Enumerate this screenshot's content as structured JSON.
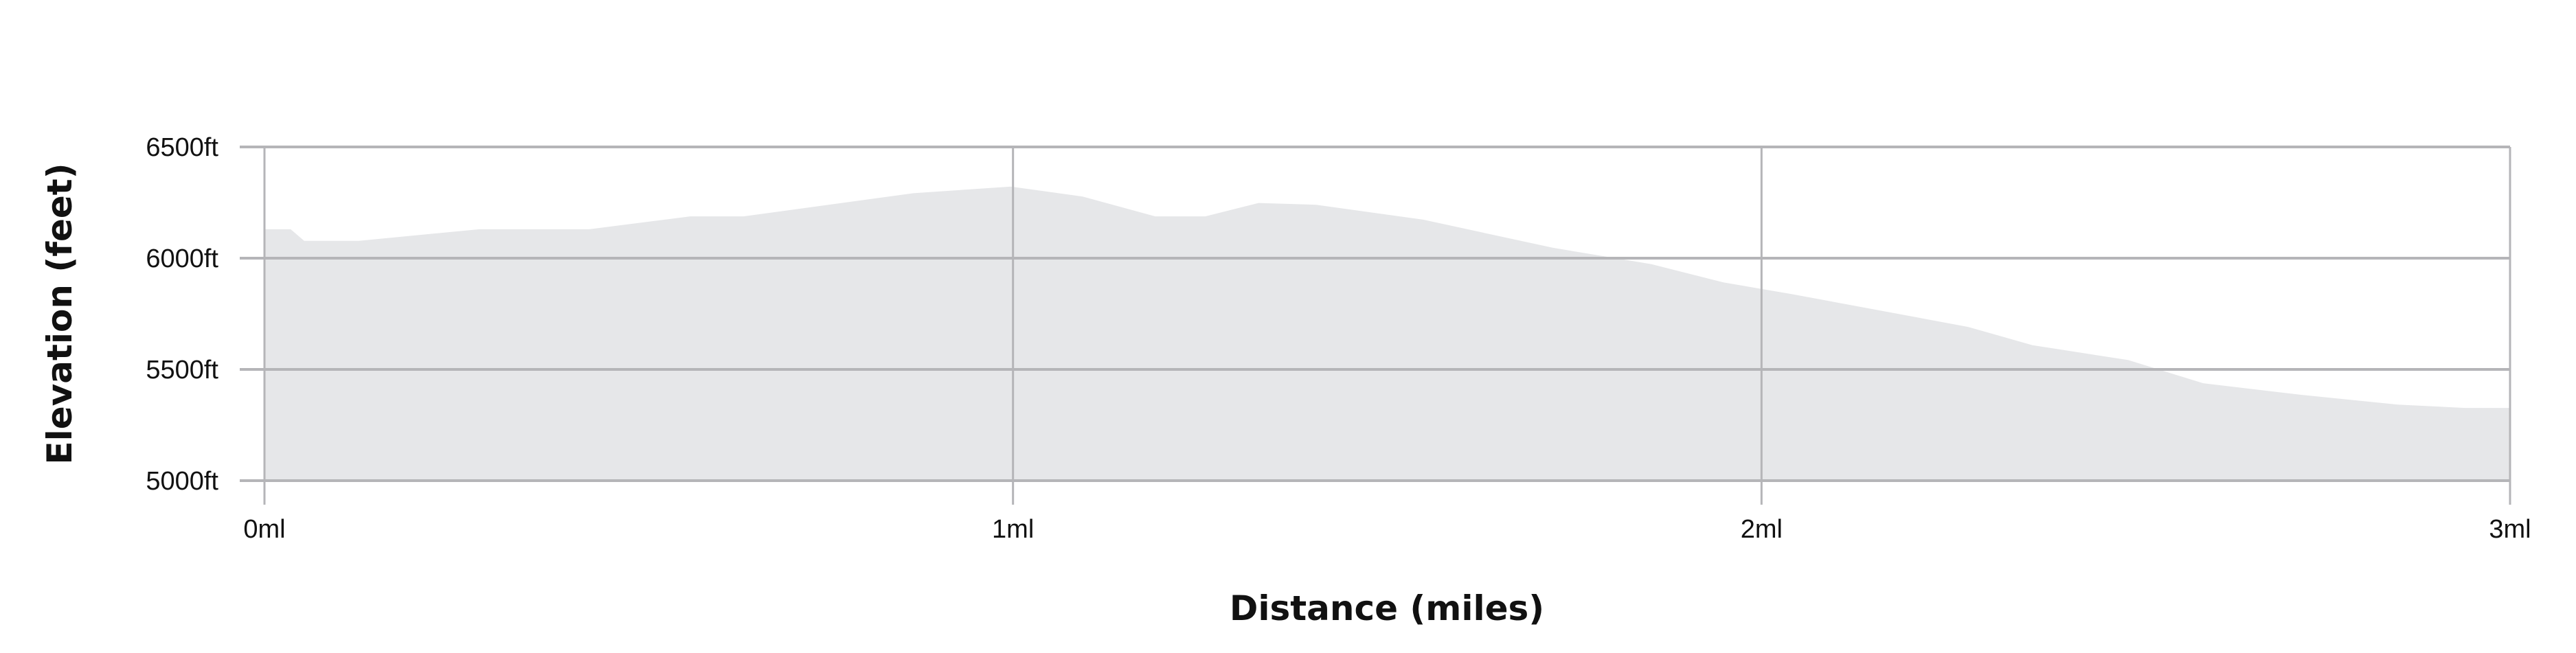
{
  "chart_data": {
    "type": "area",
    "title": "",
    "xlabel": "Distance (miles)",
    "ylabel": "Elevation (feet)",
    "xlim": [
      0,
      3
    ],
    "ylim": [
      5000,
      6500
    ],
    "x_ticks": [
      0,
      1,
      2,
      3
    ],
    "x_tick_labels": [
      "0ml",
      "1ml",
      "2ml",
      "3ml"
    ],
    "y_ticks": [
      5000,
      5500,
      6000,
      6500
    ],
    "y_tick_labels": [
      "5000ft",
      "5500ft",
      "6000ft",
      "6500ft"
    ],
    "grid": true,
    "fill_color": "#e6e7e9",
    "grid_color": "#b5b5b8",
    "x": [
      0,
      0.035,
      0.053,
      0.126,
      0.287,
      0.434,
      0.569,
      0.64,
      0.867,
      0.997,
      1.093,
      1.19,
      1.257,
      1.328,
      1.405,
      1.548,
      1.721,
      1.853,
      1.949,
      2.04,
      2.276,
      2.362,
      2.49,
      2.59,
      2.72,
      2.85,
      2.94,
      3.0
    ],
    "y": [
      6130,
      6130,
      6078,
      6078,
      6130,
      6130,
      6188,
      6188,
      6292,
      6322,
      6277,
      6188,
      6188,
      6248,
      6240,
      6173,
      6047,
      5973,
      5891,
      5839,
      5691,
      5609,
      5542,
      5438,
      5386,
      5342,
      5327,
      5327
    ]
  }
}
